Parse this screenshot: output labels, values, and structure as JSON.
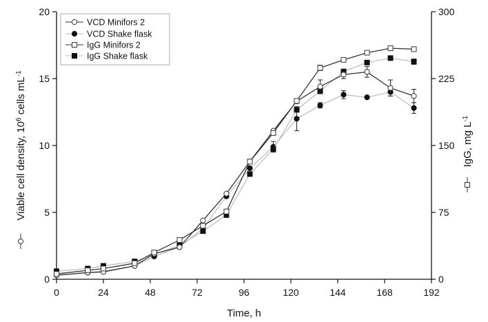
{
  "chart_data": {
    "type": "line",
    "xlabel": "Time, h",
    "ylabel_left": {
      "prefix": "Viable cell density, 10",
      "sup1": "6",
      "middle": " cells mL",
      "sup2": "-1"
    },
    "ylabel_right": {
      "prefix": "IgG, mg L",
      "sup": "-1"
    },
    "xlim": [
      0,
      192
    ],
    "ylim_left": [
      0,
      20
    ],
    "ylim_right": [
      0,
      300
    ],
    "xticks": [
      "0",
      "24",
      "48",
      "72",
      "96",
      "120",
      "144",
      "168",
      "192"
    ],
    "yticks_left": [
      "0",
      "5",
      "10",
      "15",
      "20"
    ],
    "yticks_right": [
      "0",
      "75",
      "150",
      "225",
      "300"
    ],
    "legend_position": "top-left",
    "series": [
      {
        "name": "VCD Minifors 2",
        "axis": "left",
        "marker": "circle-open",
        "line_color": "#333333",
        "x": [
          0,
          16,
          24,
          40,
          50,
          63,
          75,
          87,
          99,
          111,
          123,
          135,
          147,
          159,
          171,
          183
        ],
        "y": [
          0.3,
          0.5,
          0.55,
          1.0,
          1.9,
          2.4,
          4.4,
          6.4,
          8.8,
          11.1,
          13.3,
          14.4,
          15.3,
          15.5,
          14.3,
          13.7
        ],
        "err": [
          0,
          0,
          0,
          0,
          0,
          0,
          0,
          0,
          0,
          0,
          0,
          0.5,
          0.3,
          0.4,
          0.6,
          0.5
        ]
      },
      {
        "name": "VCD Shake flask",
        "axis": "left",
        "marker": "circle-filled",
        "line_color": "#bbbbbb",
        "x": [
          0,
          16,
          24,
          40,
          50,
          63,
          75,
          87,
          99,
          111,
          123,
          135,
          147,
          159,
          171,
          183
        ],
        "y": [
          0.3,
          0.5,
          0.6,
          1.0,
          1.7,
          2.4,
          3.8,
          6.2,
          8.3,
          9.9,
          12.0,
          13.0,
          13.8,
          13.6,
          14.0,
          12.8
        ],
        "err": [
          0,
          0,
          0,
          0,
          0,
          0,
          0,
          0,
          0,
          0.4,
          0.9,
          0.2,
          0.3,
          0,
          0.3,
          0.4
        ]
      },
      {
        "name": "IgG Minifors 2",
        "axis": "right",
        "marker": "square-open",
        "line_color": "#333333",
        "x": [
          0,
          16,
          24,
          40,
          50,
          63,
          75,
          87,
          99,
          111,
          123,
          135,
          147,
          159,
          171,
          183
        ],
        "y": [
          6,
          10,
          12,
          18,
          30,
          44,
          60,
          76,
          132,
          164,
          200,
          237,
          246,
          254,
          259,
          258
        ],
        "err": [
          0,
          0,
          0,
          0,
          0,
          0,
          0,
          0,
          0,
          0,
          0,
          3,
          2,
          1.5,
          1.5,
          1.5
        ]
      },
      {
        "name": "IgG Shake flask",
        "axis": "right",
        "marker": "square-filled",
        "line_color": "#bbbbbb",
        "x": [
          0,
          16,
          24,
          40,
          50,
          63,
          75,
          87,
          99,
          111,
          123,
          135,
          147,
          159,
          171,
          183
        ],
        "y": [
          9,
          12,
          15,
          20,
          28,
          38,
          54,
          72,
          118,
          146,
          190,
          211,
          233,
          243,
          248,
          244
        ],
        "err": [
          0,
          0,
          0,
          0,
          0,
          0,
          0,
          0,
          0,
          0,
          0,
          3,
          2,
          1.5,
          2,
          3
        ]
      }
    ]
  }
}
